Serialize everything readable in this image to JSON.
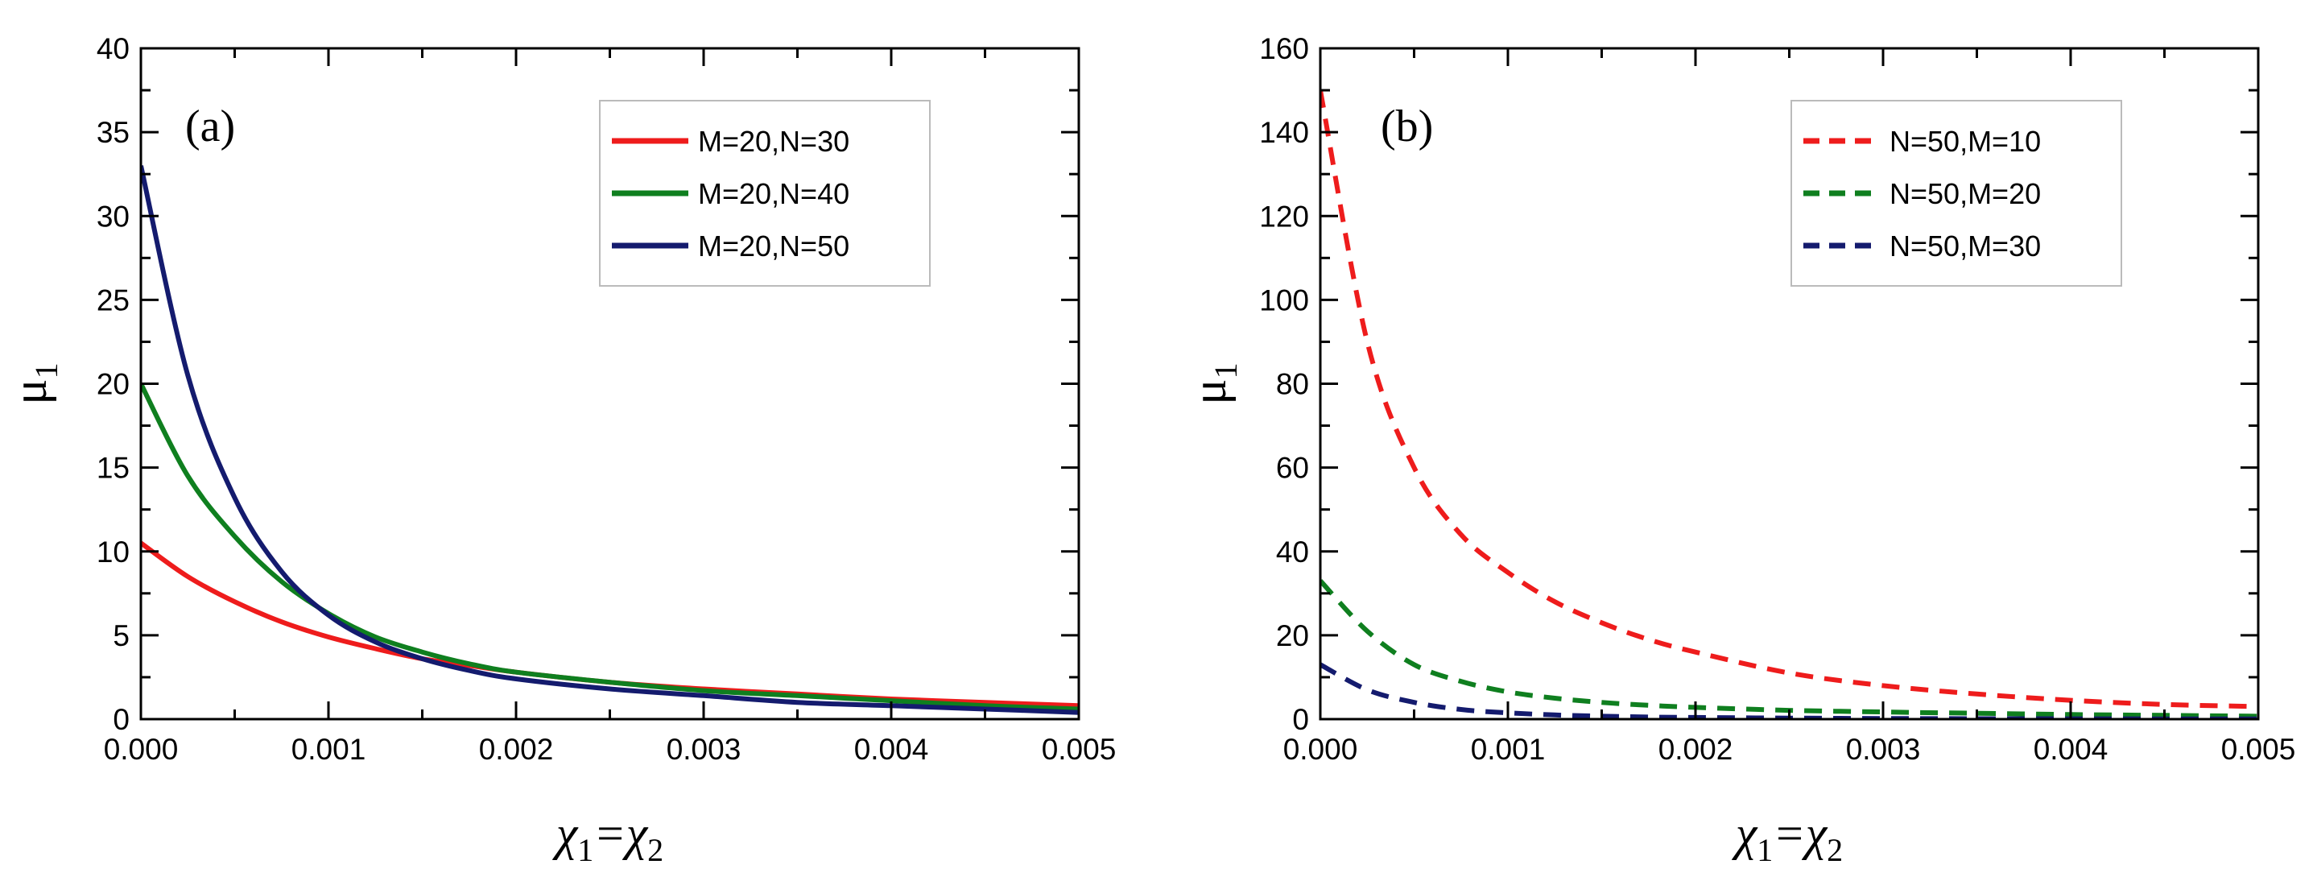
{
  "colors": {
    "red": "#ee1c1c",
    "green": "#0f7f1f",
    "navy": "#141b6e"
  },
  "chart_data": [
    {
      "type": "line",
      "panel_label": "(a)",
      "xlabel_parts": [
        "χ",
        "1",
        "=χ",
        "2"
      ],
      "ylabel_parts": [
        "μ",
        "1"
      ],
      "xlim": [
        0,
        0.005
      ],
      "ylim": [
        0,
        40
      ],
      "x_ticks": [
        0,
        0.001,
        0.002,
        0.003,
        0.004,
        0.005
      ],
      "x_tick_labels": [
        "0.000",
        "0.001",
        "0.002",
        "0.003",
        "0.004",
        "0.005"
      ],
      "y_ticks": [
        0,
        5,
        10,
        15,
        20,
        25,
        30,
        35,
        40
      ],
      "y_tick_labels": [
        "0",
        "5",
        "10",
        "15",
        "20",
        "25",
        "30",
        "35",
        "40"
      ],
      "legend_position": "top-right",
      "x": [
        0,
        0.00025,
        0.0005,
        0.00075,
        0.001,
        0.00125,
        0.0015,
        0.00175,
        0.002,
        0.0025,
        0.003,
        0.0035,
        0.004,
        0.0045,
        0.005
      ],
      "series": [
        {
          "name": "M=20,N=30",
          "color": "#ee1c1c",
          "dash": "solid",
          "values": [
            10.5,
            8.5,
            7.0,
            5.8,
            4.9,
            4.2,
            3.6,
            3.2,
            2.8,
            2.2,
            1.8,
            1.5,
            1.2,
            1.0,
            0.8
          ]
        },
        {
          "name": "M=20,N=40",
          "color": "#0f7f1f",
          "dash": "solid",
          "values": [
            20.0,
            14.5,
            10.9,
            8.2,
            6.3,
            4.9,
            4.0,
            3.3,
            2.8,
            2.2,
            1.7,
            1.4,
            1.1,
            0.8,
            0.6
          ]
        },
        {
          "name": "M=20,N=50",
          "color": "#141b6e",
          "dash": "solid",
          "values": [
            33.0,
            20.5,
            13.2,
            8.8,
            6.2,
            4.6,
            3.6,
            2.9,
            2.4,
            1.8,
            1.4,
            1.0,
            0.8,
            0.6,
            0.4
          ]
        }
      ]
    },
    {
      "type": "line",
      "panel_label": "(b)",
      "xlabel_parts": [
        "χ",
        "1",
        "=χ",
        "2"
      ],
      "ylabel_parts": [
        "μ",
        "1"
      ],
      "xlim": [
        0,
        0.005
      ],
      "ylim": [
        0,
        160
      ],
      "x_ticks": [
        0,
        0.001,
        0.002,
        0.003,
        0.004,
        0.005
      ],
      "x_tick_labels": [
        "0.000",
        "0.001",
        "0.002",
        "0.003",
        "0.004",
        "0.005"
      ],
      "y_ticks": [
        0,
        20,
        40,
        60,
        80,
        100,
        120,
        140,
        160
      ],
      "y_tick_labels": [
        "0",
        "20",
        "40",
        "60",
        "80",
        "100",
        "120",
        "140",
        "160"
      ],
      "legend_position": "top-right",
      "x": [
        0,
        0.00025,
        0.0005,
        0.00075,
        0.001,
        0.00125,
        0.0015,
        0.00175,
        0.002,
        0.0025,
        0.003,
        0.0035,
        0.004,
        0.0045,
        0.005
      ],
      "series": [
        {
          "name": "N=50,M=10",
          "color": "#ee1c1c",
          "dash": "dashed",
          "values": [
            150,
            90,
            60,
            44,
            35,
            28,
            23,
            19,
            16,
            11,
            8,
            6,
            4.5,
            3.5,
            3
          ]
        },
        {
          "name": "N=50,M=20",
          "color": "#0f7f1f",
          "dash": "dashed",
          "values": [
            33,
            21,
            13,
            9,
            6.5,
            5,
            4,
            3.3,
            2.8,
            2.1,
            1.7,
            1.4,
            1.1,
            0.9,
            0.7
          ]
        },
        {
          "name": "N=50,M=30",
          "color": "#141b6e",
          "dash": "dashed",
          "values": [
            13,
            7,
            4,
            2.3,
            1.5,
            1.0,
            0.7,
            0.5,
            0.4,
            0.25,
            0.15,
            0.1,
            0.08,
            0.05,
            0.04
          ]
        }
      ]
    }
  ]
}
